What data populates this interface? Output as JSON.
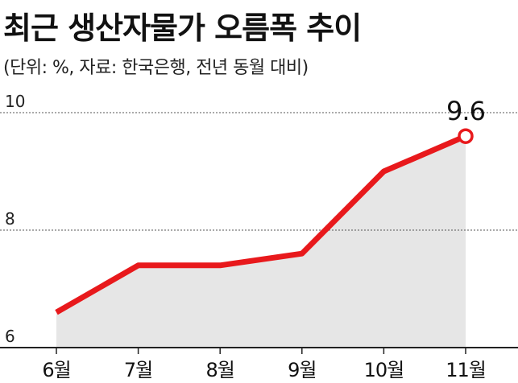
{
  "chart_data": {
    "type": "line",
    "title": "최근 생산자물가 오름폭 추이",
    "subtitle": "(단위: %, 자료: 한국은행, 전년 동월 대비)",
    "categories": [
      "6월",
      "7월",
      "8월",
      "9월",
      "10월",
      "11월"
    ],
    "series": [
      {
        "values": [
          6.6,
          7.4,
          7.4,
          7.6,
          9.0,
          9.6
        ]
      }
    ],
    "ylim": [
      6,
      10
    ],
    "yticks": [
      "6",
      "8",
      "10"
    ],
    "grid": true,
    "last_value_label": "9.6",
    "colors": {
      "line": "#e8191c",
      "area": "#e6e6e6",
      "grid": "#555555",
      "axis": "#222222"
    }
  }
}
